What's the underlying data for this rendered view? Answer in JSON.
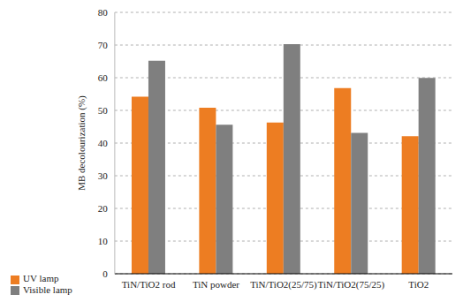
{
  "chart_data": {
    "type": "bar",
    "y_label": "MB decolourization (%)",
    "categories": [
      "TiN/TiO2 rod",
      "TiN powder",
      "TiN/TiO2(25/75)",
      "TiN/TiO2(75/25)",
      "TiO2"
    ],
    "series": [
      {
        "name": "UV lamp",
        "color": "#ed7d22",
        "values": [
          54.2,
          50.8,
          46.3,
          56.8,
          42.1
        ]
      },
      {
        "name": "Visible lamp",
        "color": "#7f7f7f",
        "values": [
          65.2,
          45.6,
          70.3,
          43.1,
          59.9
        ]
      }
    ],
    "ylim": [
      0,
      80
    ],
    "yticks": [
      0,
      10,
      20,
      30,
      40,
      50,
      60,
      70,
      80
    ],
    "grid": true,
    "legend": "bottom left"
  }
}
